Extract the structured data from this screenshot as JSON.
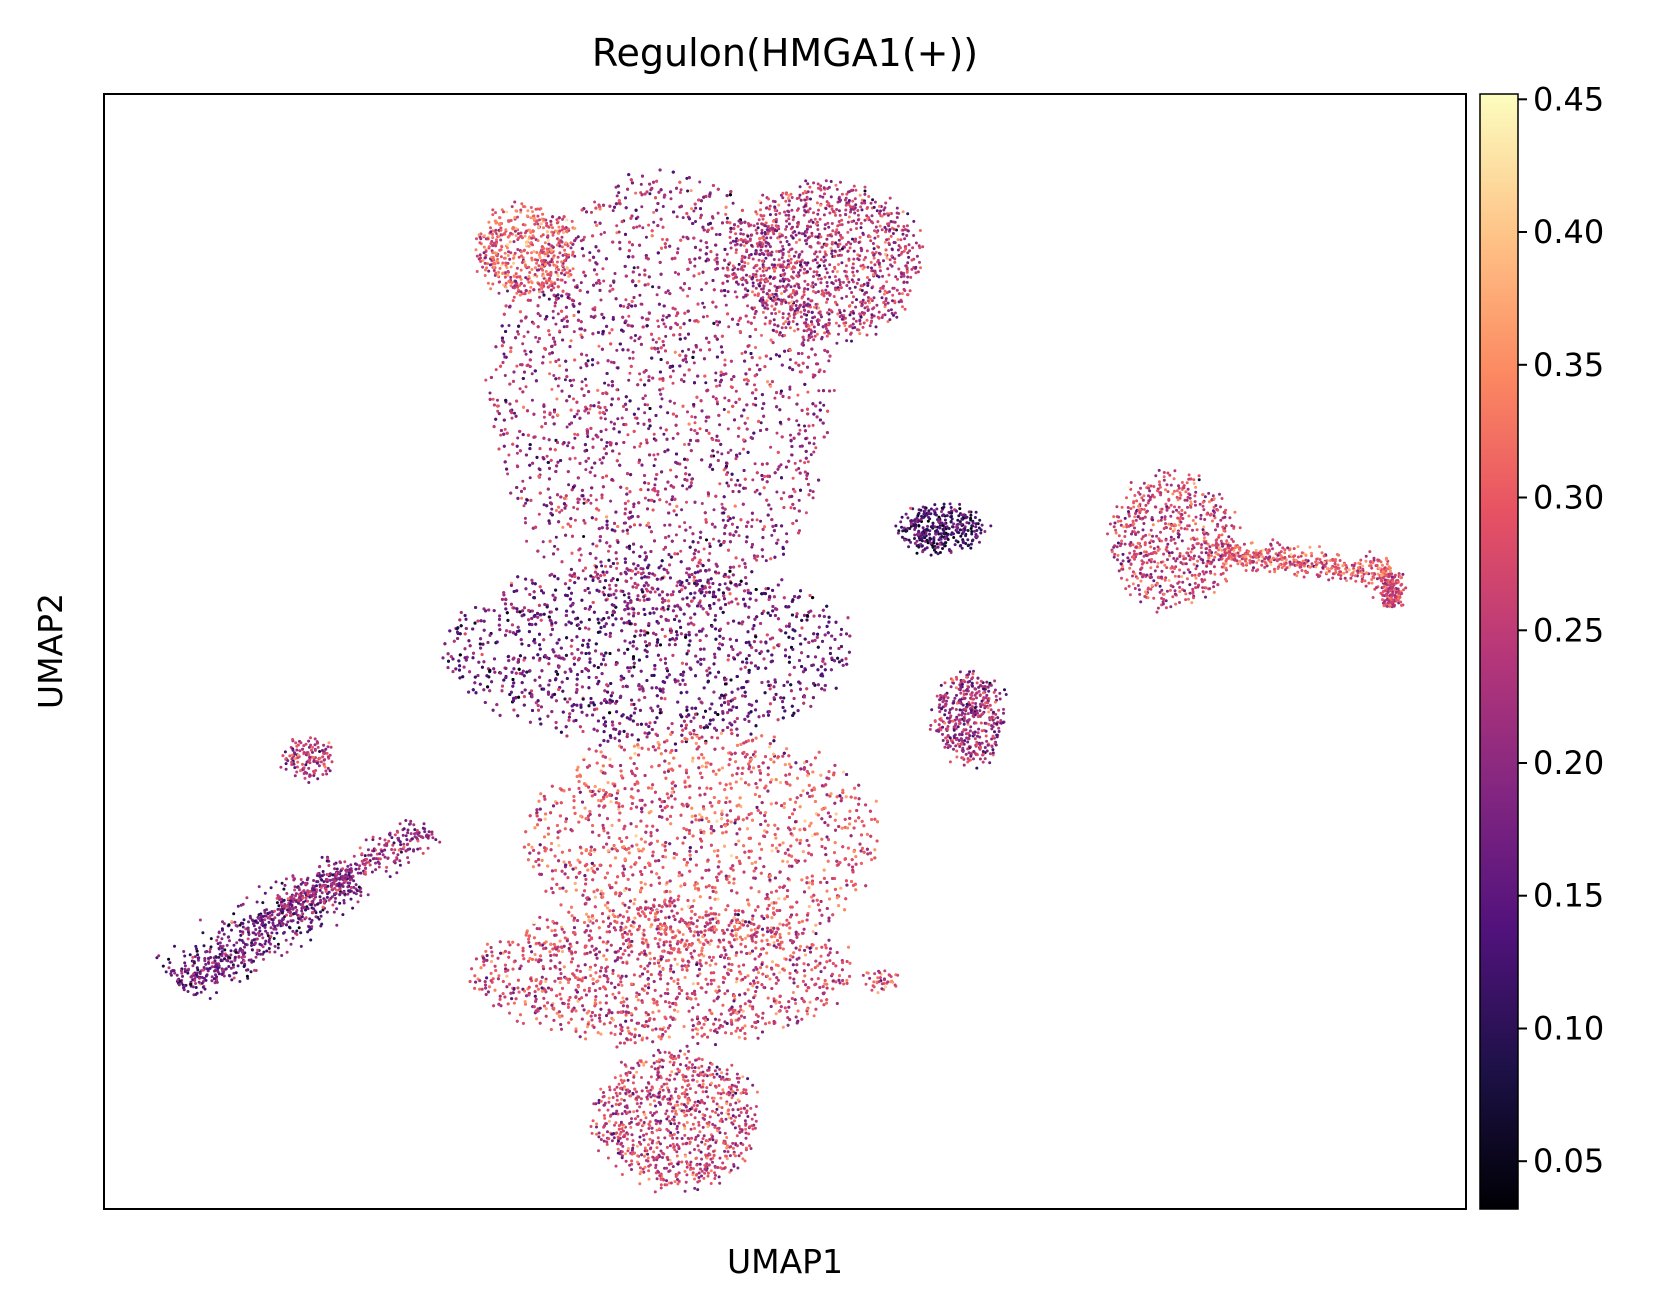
{
  "chart_data": {
    "type": "scatter",
    "title": "Regulon(HMGA1(+))",
    "xlabel": "UMAP1",
    "ylabel": "UMAP2",
    "x_ticks_shown": false,
    "y_ticks_shown": false,
    "grid": false,
    "xlim": [
      0,
      100
    ],
    "ylim": [
      0,
      100
    ],
    "colormap": "magma",
    "colorbar": {
      "vmin": 0.032,
      "vmax": 0.452,
      "ticks": [
        "0.05",
        "0.10",
        "0.15",
        "0.20",
        "0.25",
        "0.30",
        "0.35",
        "0.40",
        "0.45"
      ],
      "tick_values": [
        0.05,
        0.1,
        0.15,
        0.2,
        0.25,
        0.3,
        0.35,
        0.4,
        0.45
      ],
      "placement": "right"
    },
    "clusters": [
      {
        "cx": 41,
        "cy": 73,
        "rx": 12.5,
        "ry": 20,
        "mean": 0.22,
        "points": 5200
      },
      {
        "cx": 53,
        "cy": 85,
        "rx": 7,
        "ry": 7,
        "mean": 0.24,
        "points": 1200
      },
      {
        "cx": 31,
        "cy": 86,
        "rx": 3.5,
        "ry": 4,
        "mean": 0.3,
        "points": 500
      },
      {
        "cx": 40,
        "cy": 50,
        "rx": 15,
        "ry": 8,
        "mean": 0.17,
        "points": 3800
      },
      {
        "cx": 44,
        "cy": 33,
        "rx": 13,
        "ry": 10,
        "mean": 0.29,
        "points": 3800
      },
      {
        "cx": 41,
        "cy": 21,
        "rx": 14,
        "ry": 6,
        "mean": 0.27,
        "points": 2400
      },
      {
        "cx": 42,
        "cy": 8,
        "rx": 6,
        "ry": 6,
        "mean": 0.26,
        "points": 900
      },
      {
        "cx": 61.5,
        "cy": 61,
        "rx": 3,
        "ry": 2,
        "mean": 0.12,
        "points": 350
      },
      {
        "cx": 63.5,
        "cy": 44,
        "rx": 2.5,
        "ry": 4,
        "mean": 0.22,
        "points": 450
      },
      {
        "cx": 15,
        "cy": 40.5,
        "rx": 1.6,
        "ry": 1.6,
        "mean": 0.24,
        "points": 140
      },
      {
        "cx": 78.5,
        "cy": 60,
        "rx": 4.5,
        "ry": 6,
        "mean": 0.26,
        "points": 650
      },
      {
        "cx": 57,
        "cy": 20.5,
        "rx": 1,
        "ry": 0.8,
        "mean": 0.3,
        "points": 40
      }
    ],
    "tails": [
      {
        "x0": 5.5,
        "y0": 20,
        "x1": 18,
        "y1": 30,
        "width": 2.2,
        "mean": 0.17,
        "points": 700
      },
      {
        "x0": 13,
        "y0": 27,
        "x1": 24,
        "y1": 34,
        "width": 1.4,
        "mean": 0.21,
        "points": 350
      },
      {
        "x0": 81,
        "y0": 59,
        "x1": 94.5,
        "y1": 57,
        "width": 1.2,
        "mean": 0.29,
        "points": 450
      },
      {
        "x0": 94.5,
        "y0": 57,
        "x1": 94.5,
        "y1": 54,
        "width": 1.0,
        "mean": 0.27,
        "points": 180
      }
    ]
  }
}
